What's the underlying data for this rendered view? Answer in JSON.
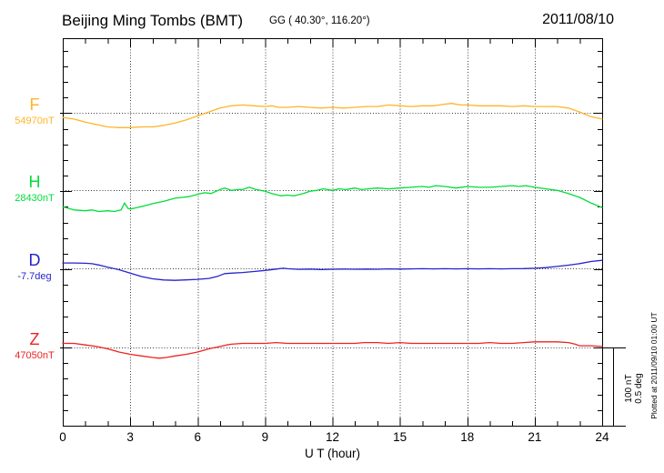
{
  "header": {
    "station": "Beijing Ming Tombs (BMT)",
    "coords": "GG ( 40.30°, 116.20°)",
    "date": "2011/08/10"
  },
  "chart_data": {
    "type": "line",
    "title": "Beijing Ming Tombs (BMT)",
    "subtitle": "GG ( 40.30°, 116.20°)",
    "date": "2011/08/10",
    "xlabel": "U T (hour)",
    "x_range": [
      0,
      24
    ],
    "x_ticks": [
      "0",
      "3",
      "6",
      "9",
      "12",
      "15",
      "18",
      "21",
      "24"
    ],
    "grid_hours": [
      3,
      6,
      9,
      12,
      15,
      18,
      21
    ],
    "y_scale": {
      "nT_per_division": 100,
      "deg_per_division": 0.5
    },
    "scale_bar": {
      "label_nT": "100 nT",
      "label_deg": "0.5 deg"
    },
    "plotted_at": "Plotted at 2011/09/10 01:00 UT",
    "legend_position": "left",
    "grid": "dotted",
    "series": [
      {
        "id": "F",
        "label": "F",
        "baseline_label": "54970nT",
        "baseline_value": 54970,
        "unit": "nT",
        "color": "#FFB428",
        "offsets": [
          [
            0,
            -6
          ],
          [
            0.5,
            -8
          ],
          [
            1,
            -12
          ],
          [
            1.5,
            -15
          ],
          [
            2,
            -18
          ],
          [
            2.5,
            -19
          ],
          [
            3,
            -19
          ],
          [
            3.5,
            -18
          ],
          [
            4,
            -18
          ],
          [
            4.5,
            -16
          ],
          [
            5,
            -13
          ],
          [
            5.5,
            -9
          ],
          [
            6,
            -4
          ],
          [
            6.4,
            0
          ],
          [
            7,
            6
          ],
          [
            7.5,
            9
          ],
          [
            8,
            10
          ],
          [
            8.5,
            9
          ],
          [
            9,
            8
          ],
          [
            9.3,
            9
          ],
          [
            9.6,
            7
          ],
          [
            10,
            7
          ],
          [
            10.5,
            8
          ],
          [
            11,
            7
          ],
          [
            11.5,
            6
          ],
          [
            12,
            7
          ],
          [
            12.5,
            6
          ],
          [
            13,
            7
          ],
          [
            13.5,
            8
          ],
          [
            14,
            8
          ],
          [
            14.5,
            10
          ],
          [
            15,
            9
          ],
          [
            15.5,
            8
          ],
          [
            16,
            9
          ],
          [
            16.5,
            9
          ],
          [
            17,
            11
          ],
          [
            17.3,
            12
          ],
          [
            17.7,
            10
          ],
          [
            18,
            10
          ],
          [
            18.5,
            9
          ],
          [
            19,
            9
          ],
          [
            19.5,
            9
          ],
          [
            20,
            8
          ],
          [
            20.5,
            9
          ],
          [
            21,
            8
          ],
          [
            21.5,
            8
          ],
          [
            22,
            8
          ],
          [
            22.5,
            6
          ],
          [
            23,
            1
          ],
          [
            23.5,
            -5
          ],
          [
            24,
            -8
          ]
        ]
      },
      {
        "id": "H",
        "label": "H",
        "baseline_label": "28430nT",
        "baseline_value": 28430,
        "unit": "nT",
        "color": "#00DD3C",
        "offsets": [
          [
            0,
            -21
          ],
          [
            0.5,
            -25
          ],
          [
            1,
            -26
          ],
          [
            1.3,
            -25
          ],
          [
            1.6,
            -27
          ],
          [
            2,
            -26
          ],
          [
            2.3,
            -27
          ],
          [
            2.6,
            -25
          ],
          [
            2.75,
            -16
          ],
          [
            2.9,
            -23
          ],
          [
            3,
            -24
          ],
          [
            3.3,
            -22
          ],
          [
            3.6,
            -20
          ],
          [
            4,
            -17
          ],
          [
            4.5,
            -14
          ],
          [
            5,
            -10
          ],
          [
            5.3,
            -9
          ],
          [
            5.6,
            -8
          ],
          [
            6,
            -5
          ],
          [
            6.3,
            -3
          ],
          [
            6.6,
            -4
          ],
          [
            7,
            1
          ],
          [
            7.2,
            3
          ],
          [
            7.5,
            0
          ],
          [
            7.8,
            1
          ],
          [
            8,
            1
          ],
          [
            8.3,
            4
          ],
          [
            8.6,
            1
          ],
          [
            9,
            -1
          ],
          [
            9.3,
            -4
          ],
          [
            9.7,
            -7
          ],
          [
            10,
            -6
          ],
          [
            10.3,
            -7
          ],
          [
            10.7,
            -4
          ],
          [
            11,
            -1
          ],
          [
            11.3,
            0
          ],
          [
            11.6,
            2
          ],
          [
            12,
            0
          ],
          [
            12.3,
            2
          ],
          [
            12.6,
            1
          ],
          [
            13,
            3
          ],
          [
            13.3,
            1
          ],
          [
            13.6,
            2
          ],
          [
            14,
            3
          ],
          [
            14.5,
            2
          ],
          [
            15,
            3
          ],
          [
            15.5,
            4
          ],
          [
            16,
            5
          ],
          [
            16.3,
            4
          ],
          [
            16.6,
            6
          ],
          [
            17,
            5
          ],
          [
            17.5,
            3
          ],
          [
            18,
            5
          ],
          [
            18.5,
            4
          ],
          [
            19,
            4
          ],
          [
            19.5,
            5
          ],
          [
            20,
            6
          ],
          [
            20.3,
            5
          ],
          [
            20.6,
            6
          ],
          [
            21,
            4
          ],
          [
            21.5,
            2
          ],
          [
            22,
            0
          ],
          [
            22.5,
            -4
          ],
          [
            23,
            -9
          ],
          [
            23.5,
            -16
          ],
          [
            24,
            -22
          ]
        ]
      },
      {
        "id": "D",
        "label": "D",
        "baseline_label": "-7.7deg",
        "baseline_value": -7.7,
        "unit": "deg",
        "color": "#2424CC",
        "offsets": [
          [
            0,
            0.035
          ],
          [
            0.5,
            0.035
          ],
          [
            1,
            0.033
          ],
          [
            1.3,
            0.03
          ],
          [
            1.6,
            0.022
          ],
          [
            2,
            0.008
          ],
          [
            2.5,
            -0.008
          ],
          [
            3,
            -0.03
          ],
          [
            3.5,
            -0.052
          ],
          [
            4,
            -0.066
          ],
          [
            4.5,
            -0.074
          ],
          [
            5,
            -0.076
          ],
          [
            5.5,
            -0.073
          ],
          [
            6,
            -0.07
          ],
          [
            6.5,
            -0.064
          ],
          [
            6.9,
            -0.05
          ],
          [
            7.2,
            -0.033
          ],
          [
            7.5,
            -0.03
          ],
          [
            8,
            -0.026
          ],
          [
            8.5,
            -0.02
          ],
          [
            9,
            -0.013
          ],
          [
            9.5,
            -0.004
          ],
          [
            9.8,
            0.001
          ],
          [
            10,
            -0.002
          ],
          [
            10.5,
            -0.006
          ],
          [
            11,
            -0.004
          ],
          [
            11.5,
            -0.007
          ],
          [
            12,
            -0.005
          ],
          [
            12.5,
            -0.004
          ],
          [
            13,
            -0.005
          ],
          [
            13.5,
            -0.004
          ],
          [
            14,
            -0.005
          ],
          [
            14.5,
            -0.003
          ],
          [
            15,
            -0.004
          ],
          [
            15.5,
            -0.003
          ],
          [
            16,
            -0.002
          ],
          [
            16.5,
            -0.003
          ],
          [
            17,
            -0.002
          ],
          [
            17.5,
            -0.003
          ],
          [
            18,
            -0.002
          ],
          [
            18.5,
            -0.003
          ],
          [
            19,
            -0.002
          ],
          [
            19.5,
            -0.003
          ],
          [
            20,
            -0.002
          ],
          [
            20.5,
            -0.001
          ],
          [
            21,
            0.001
          ],
          [
            21.5,
            0.005
          ],
          [
            22,
            0.013
          ],
          [
            22.5,
            0.021
          ],
          [
            23,
            0.031
          ],
          [
            23.5,
            0.044
          ],
          [
            24,
            0.052
          ]
        ]
      },
      {
        "id": "Z",
        "label": "Z",
        "baseline_label": "47050nT",
        "baseline_value": 47050,
        "unit": "nT",
        "color": "#EE2222",
        "offsets": [
          [
            0,
            5
          ],
          [
            0.5,
            5
          ],
          [
            1,
            3
          ],
          [
            1.5,
            1
          ],
          [
            2,
            -2
          ],
          [
            2.5,
            -6
          ],
          [
            3,
            -9
          ],
          [
            3.5,
            -11
          ],
          [
            4,
            -13
          ],
          [
            4.3,
            -14
          ],
          [
            4.6,
            -13
          ],
          [
            5,
            -11
          ],
          [
            5.5,
            -9
          ],
          [
            6,
            -6
          ],
          [
            6.5,
            -2
          ],
          [
            7,
            1
          ],
          [
            7.3,
            3
          ],
          [
            7.5,
            4
          ],
          [
            8,
            5
          ],
          [
            8.5,
            5
          ],
          [
            9,
            5
          ],
          [
            9.5,
            6
          ],
          [
            10,
            5
          ],
          [
            10.5,
            5
          ],
          [
            11,
            5
          ],
          [
            11.5,
            5
          ],
          [
            12,
            5
          ],
          [
            12.5,
            5
          ],
          [
            13,
            5
          ],
          [
            13.4,
            6
          ],
          [
            14,
            6
          ],
          [
            14.5,
            5
          ],
          [
            15,
            6
          ],
          [
            15.5,
            5
          ],
          [
            16,
            5
          ],
          [
            16.5,
            5
          ],
          [
            17,
            5
          ],
          [
            17.5,
            5
          ],
          [
            18,
            5
          ],
          [
            18.5,
            5
          ],
          [
            19,
            6
          ],
          [
            19.5,
            5
          ],
          [
            20,
            5
          ],
          [
            20.5,
            6
          ],
          [
            21,
            7
          ],
          [
            21.5,
            7
          ],
          [
            22,
            7
          ],
          [
            22.5,
            6
          ],
          [
            22.8,
            4
          ],
          [
            23,
            2
          ],
          [
            23.5,
            2
          ],
          [
            24,
            1
          ]
        ]
      }
    ]
  }
}
